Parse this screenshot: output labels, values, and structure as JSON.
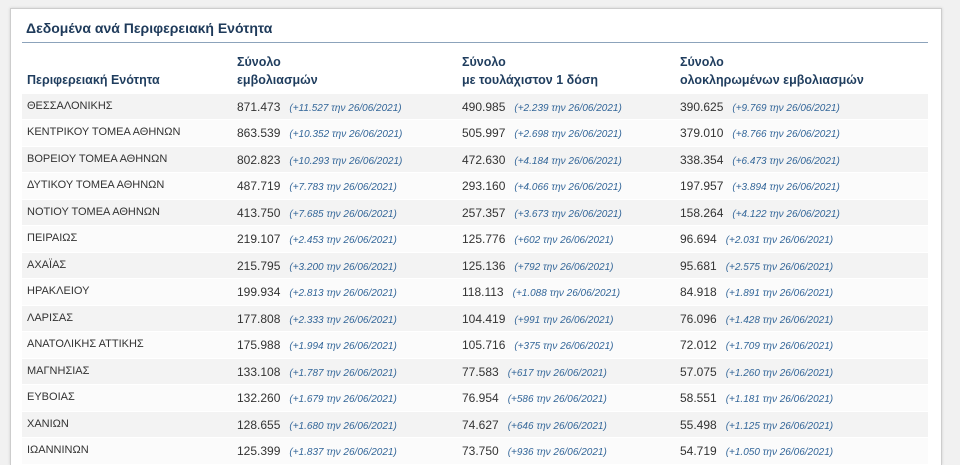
{
  "card": {
    "title": "Δεδομένα ανά Περιφερειακή Ενότητα"
  },
  "table": {
    "headers": [
      {
        "lines": [
          "Περιφερειακή Ενότητα"
        ]
      },
      {
        "lines": [
          "Σύνολο",
          "εμβολιασμών"
        ]
      },
      {
        "lines": [
          "Σύνολο",
          "με τουλάχιστον 1 δόση"
        ]
      },
      {
        "lines": [
          "Σύνολο",
          "ολοκληρωμένων εμβολιασμών"
        ]
      }
    ],
    "rows": [
      {
        "region": "ΘΕΣΣΑΛΟΝΙΚΗΣ",
        "total": {
          "value": "871.473",
          "change": "(+11.527 την 26/06/2021)"
        },
        "one_dose": {
          "value": "490.985",
          "change": "(+2.239 την 26/06/2021)"
        },
        "completed": {
          "value": "390.625",
          "change": "(+9.769 την 26/06/2021)"
        }
      },
      {
        "region": "ΚΕΝΤΡΙΚΟΥ ΤΟΜΕΑ ΑΘΗΝΩΝ",
        "total": {
          "value": "863.539",
          "change": "(+10.352 την 26/06/2021)"
        },
        "one_dose": {
          "value": "505.997",
          "change": "(+2.698 την 26/06/2021)"
        },
        "completed": {
          "value": "379.010",
          "change": "(+8.766 την 26/06/2021)"
        }
      },
      {
        "region": "ΒΟΡΕΙΟΥ ΤΟΜΕΑ ΑΘΗΝΩΝ",
        "total": {
          "value": "802.823",
          "change": "(+10.293 την 26/06/2021)"
        },
        "one_dose": {
          "value": "472.630",
          "change": "(+4.184 την 26/06/2021)"
        },
        "completed": {
          "value": "338.354",
          "change": "(+6.473 την 26/06/2021)"
        }
      },
      {
        "region": "ΔΥΤΙΚΟΥ ΤΟΜΕΑ ΑΘΗΝΩΝ",
        "total": {
          "value": "487.719",
          "change": "(+7.783 την 26/06/2021)"
        },
        "one_dose": {
          "value": "293.160",
          "change": "(+4.066 την 26/06/2021)"
        },
        "completed": {
          "value": "197.957",
          "change": "(+3.894 την 26/06/2021)"
        }
      },
      {
        "region": "ΝΟΤΙΟΥ ΤΟΜΕΑ ΑΘΗΝΩΝ",
        "total": {
          "value": "413.750",
          "change": "(+7.685 την 26/06/2021)"
        },
        "one_dose": {
          "value": "257.357",
          "change": "(+3.673 την 26/06/2021)"
        },
        "completed": {
          "value": "158.264",
          "change": "(+4.122 την 26/06/2021)"
        }
      },
      {
        "region": "ΠΕΙΡΑΙΩΣ",
        "total": {
          "value": "219.107",
          "change": "(+2.453 την 26/06/2021)"
        },
        "one_dose": {
          "value": "125.776",
          "change": "(+602 την 26/06/2021)"
        },
        "completed": {
          "value": "96.694",
          "change": "(+2.031 την 26/06/2021)"
        }
      },
      {
        "region": "ΑΧΑΪΑΣ",
        "total": {
          "value": "215.795",
          "change": "(+3.200 την 26/06/2021)"
        },
        "one_dose": {
          "value": "125.136",
          "change": "(+792 την 26/06/2021)"
        },
        "completed": {
          "value": "95.681",
          "change": "(+2.575 την 26/06/2021)"
        }
      },
      {
        "region": "ΗΡΑΚΛΕΙΟΥ",
        "total": {
          "value": "199.934",
          "change": "(+2.813 την 26/06/2021)"
        },
        "one_dose": {
          "value": "118.113",
          "change": "(+1.088 την 26/06/2021)"
        },
        "completed": {
          "value": "84.918",
          "change": "(+1.891 την 26/06/2021)"
        }
      },
      {
        "region": "ΛΑΡΙΣΑΣ",
        "total": {
          "value": "177.808",
          "change": "(+2.333 την 26/06/2021)"
        },
        "one_dose": {
          "value": "104.419",
          "change": "(+991 την 26/06/2021)"
        },
        "completed": {
          "value": "76.096",
          "change": "(+1.428 την 26/06/2021)"
        }
      },
      {
        "region": "ΑΝΑΤΟΛΙΚΗΣ ΑΤΤΙΚΗΣ",
        "total": {
          "value": "175.988",
          "change": "(+1.994 την 26/06/2021)"
        },
        "one_dose": {
          "value": "105.716",
          "change": "(+375 την 26/06/2021)"
        },
        "completed": {
          "value": "72.012",
          "change": "(+1.709 την 26/06/2021)"
        }
      },
      {
        "region": "ΜΑΓΝΗΣΙΑΣ",
        "total": {
          "value": "133.108",
          "change": "(+1.787 την 26/06/2021)"
        },
        "one_dose": {
          "value": "77.583",
          "change": "(+617 την 26/06/2021)"
        },
        "completed": {
          "value": "57.075",
          "change": "(+1.260 την 26/06/2021)"
        }
      },
      {
        "region": "ΕΥΒΟΙΑΣ",
        "total": {
          "value": "132.260",
          "change": "(+1.679 την 26/06/2021)"
        },
        "one_dose": {
          "value": "76.954",
          "change": "(+586 την 26/06/2021)"
        },
        "completed": {
          "value": "58.551",
          "change": "(+1.181 την 26/06/2021)"
        }
      },
      {
        "region": "ΧΑΝΙΩΝ",
        "total": {
          "value": "128.655",
          "change": "(+1.680 την 26/06/2021)"
        },
        "one_dose": {
          "value": "74.627",
          "change": "(+646 την 26/06/2021)"
        },
        "completed": {
          "value": "55.498",
          "change": "(+1.125 την 26/06/2021)"
        }
      },
      {
        "region": "ΙΩΑΝΝΙΝΩΝ",
        "total": {
          "value": "125.399",
          "change": "(+1.837 την 26/06/2021)"
        },
        "one_dose": {
          "value": "73.750",
          "change": "(+936 την 26/06/2021)"
        },
        "completed": {
          "value": "54.719",
          "change": "(+1.050 την 26/06/2021)"
        }
      }
    ]
  },
  "colors": {
    "title": "#1e3a5a",
    "header": "#1f3d5e",
    "change": "#336699",
    "text": "#333333",
    "row_odd": "#f3f3f3",
    "row_even": "#fbfbfb",
    "divider": "#8ca3bb",
    "page_bg": "#f1f1f1"
  }
}
